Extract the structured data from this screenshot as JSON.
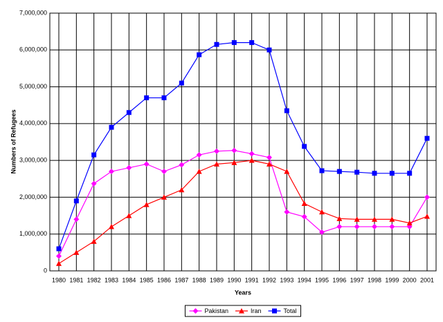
{
  "chart_data": {
    "type": "line",
    "x_label": "Years",
    "y_label": "Numbers of Refugees",
    "categories": [
      "1980",
      "1981",
      "1982",
      "1983",
      "1984",
      "1985",
      "1986",
      "1987",
      "1988",
      "1989",
      "1990",
      "1991",
      "1992",
      "1993",
      "1994",
      "1995",
      "1996",
      "1997",
      "1998",
      "1999",
      "2000",
      "2001"
    ],
    "series": [
      {
        "name": "Pakistan",
        "color": "#ff00ff",
        "marker": "diamond",
        "values": [
          400000,
          1400000,
          2370000,
          2700000,
          2800000,
          2900000,
          2700000,
          2880000,
          3150000,
          3250000,
          3270000,
          3180000,
          3080000,
          1600000,
          1470000,
          1050000,
          1200000,
          1200000,
          1200000,
          1200000,
          1200000,
          2000000
        ]
      },
      {
        "name": "Iran",
        "color": "#ff0000",
        "marker": "triangle",
        "values": [
          200000,
          500000,
          800000,
          1200000,
          1500000,
          1800000,
          2000000,
          2200000,
          2700000,
          2900000,
          2940000,
          3000000,
          2900000,
          2700000,
          1830000,
          1600000,
          1420000,
          1400000,
          1400000,
          1400000,
          1300000,
          1480000
        ]
      },
      {
        "name": "Total",
        "color": "#0000ff",
        "marker": "square",
        "values": [
          600000,
          1900000,
          3150000,
          3900000,
          4300000,
          4700000,
          4700000,
          5100000,
          5870000,
          6150000,
          6200000,
          6200000,
          6000000,
          4350000,
          3380000,
          2720000,
          2700000,
          2680000,
          2650000,
          2650000,
          2650000,
          3600000
        ]
      }
    ],
    "ylim": [
      0,
      7000000
    ],
    "yticks": [
      0,
      {
        "value": 1000000,
        "label": "1,000,000"
      },
      {
        "value": 2000000,
        "label": "2,000,000"
      },
      {
        "value": 3000000,
        "label": "3,000,000"
      },
      {
        "value": 4000000,
        "label": "4,000,000"
      },
      {
        "value": 5000000,
        "label": "5,000,000"
      },
      {
        "value": 6000000,
        "label": "6,000,000"
      },
      {
        "value": 7000000,
        "label": "7,000,000"
      }
    ],
    "grid": true,
    "legend": "bottom"
  }
}
